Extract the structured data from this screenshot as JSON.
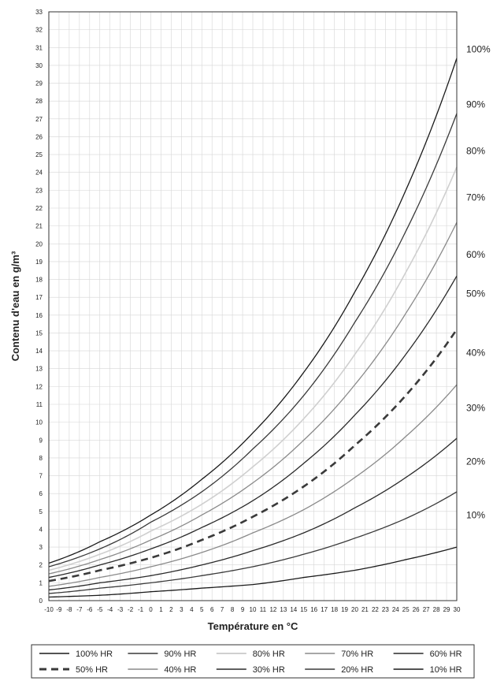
{
  "chart_data": {
    "type": "line",
    "xlabel": "Température en °C",
    "ylabel": "Contenu d'eau en g/m³",
    "xlim": [
      -10,
      30
    ],
    "ylim": [
      0,
      33
    ],
    "x_ticks": [
      -10,
      -9,
      -8,
      -7,
      -6,
      -5,
      -4,
      -3,
      -2,
      -1,
      0,
      1,
      2,
      3,
      4,
      5,
      6,
      7,
      8,
      9,
      10,
      11,
      12,
      13,
      14,
      15,
      16,
      17,
      18,
      19,
      20,
      21,
      22,
      23,
      24,
      25,
      26,
      27,
      28,
      29,
      30
    ],
    "y_ticks": [
      0,
      1,
      2,
      3,
      4,
      5,
      6,
      7,
      8,
      9,
      10,
      11,
      12,
      13,
      14,
      15,
      16,
      17,
      18,
      19,
      20,
      21,
      22,
      23,
      24,
      25,
      26,
      27,
      28,
      29,
      30,
      31,
      32,
      33
    ],
    "grid": true,
    "x": [
      -10,
      -5,
      0,
      5,
      10,
      15,
      20,
      25,
      30
    ],
    "series": [
      {
        "name": "100% HR",
        "values": [
          2.1,
          3.3,
          4.8,
          6.8,
          9.4,
          12.8,
          17.3,
          23.0,
          30.4
        ],
        "color": "#1a1a1a",
        "dash": "solid"
      },
      {
        "name": "90% HR",
        "values": [
          1.9,
          2.9,
          4.4,
          6.1,
          8.5,
          11.5,
          15.6,
          20.7,
          27.3
        ],
        "color": "#3a3a3a",
        "dash": "solid"
      },
      {
        "name": "80% HR",
        "values": [
          1.7,
          2.6,
          3.9,
          5.4,
          7.5,
          10.2,
          13.8,
          18.4,
          24.3
        ],
        "color": "#cfcfcf",
        "dash": "solid"
      },
      {
        "name": "70% HR",
        "values": [
          1.5,
          2.3,
          3.4,
          4.8,
          6.6,
          9.0,
          12.1,
          16.1,
          21.2
        ],
        "color": "#8a8a8a",
        "dash": "solid"
      },
      {
        "name": "60% HR",
        "values": [
          1.3,
          2.0,
          2.9,
          4.1,
          5.6,
          7.7,
          10.4,
          13.8,
          18.2
        ],
        "color": "#2a2a2a",
        "dash": "solid"
      },
      {
        "name": "50% HR",
        "values": [
          1.1,
          1.7,
          2.4,
          3.4,
          4.7,
          6.4,
          8.7,
          11.5,
          15.2
        ],
        "color": "#3a3a3a",
        "dash": "dashed"
      },
      {
        "name": "40% HR",
        "values": [
          0.8,
          1.3,
          1.9,
          2.7,
          3.8,
          5.1,
          6.9,
          9.2,
          12.1
        ],
        "color": "#8a8a8a",
        "dash": "solid"
      },
      {
        "name": "30% HR",
        "values": [
          0.6,
          1.0,
          1.4,
          2.0,
          2.8,
          3.8,
          5.2,
          6.9,
          9.1
        ],
        "color": "#2a2a2a",
        "dash": "solid"
      },
      {
        "name": "20% HR",
        "values": [
          0.4,
          0.7,
          1.0,
          1.4,
          1.9,
          2.6,
          3.5,
          4.6,
          6.1
        ],
        "color": "#3a3a3a",
        "dash": "solid"
      },
      {
        "name": "10% HR",
        "values": [
          0.2,
          0.3,
          0.5,
          0.7,
          0.9,
          1.3,
          1.7,
          2.3,
          3.0
        ],
        "color": "#1a1a1a",
        "dash": "solid"
      }
    ],
    "right_labels": [
      "100%",
      "90%",
      "80%",
      "70%",
      "60%",
      "50%",
      "40%",
      "30%",
      "20%",
      "10%"
    ],
    "right_label_positions": [
      30.9,
      27.8,
      25.2,
      22.6,
      19.4,
      17.2,
      13.9,
      10.8,
      7.8,
      4.8
    ],
    "legend": {
      "placement": "bottom",
      "rows": [
        [
          "100% HR",
          "90% HR",
          "80% HR",
          "70% HR",
          "60% HR"
        ],
        [
          "50% HR",
          "40% HR",
          "30% HR",
          "20% HR",
          "10% HR"
        ]
      ]
    }
  }
}
